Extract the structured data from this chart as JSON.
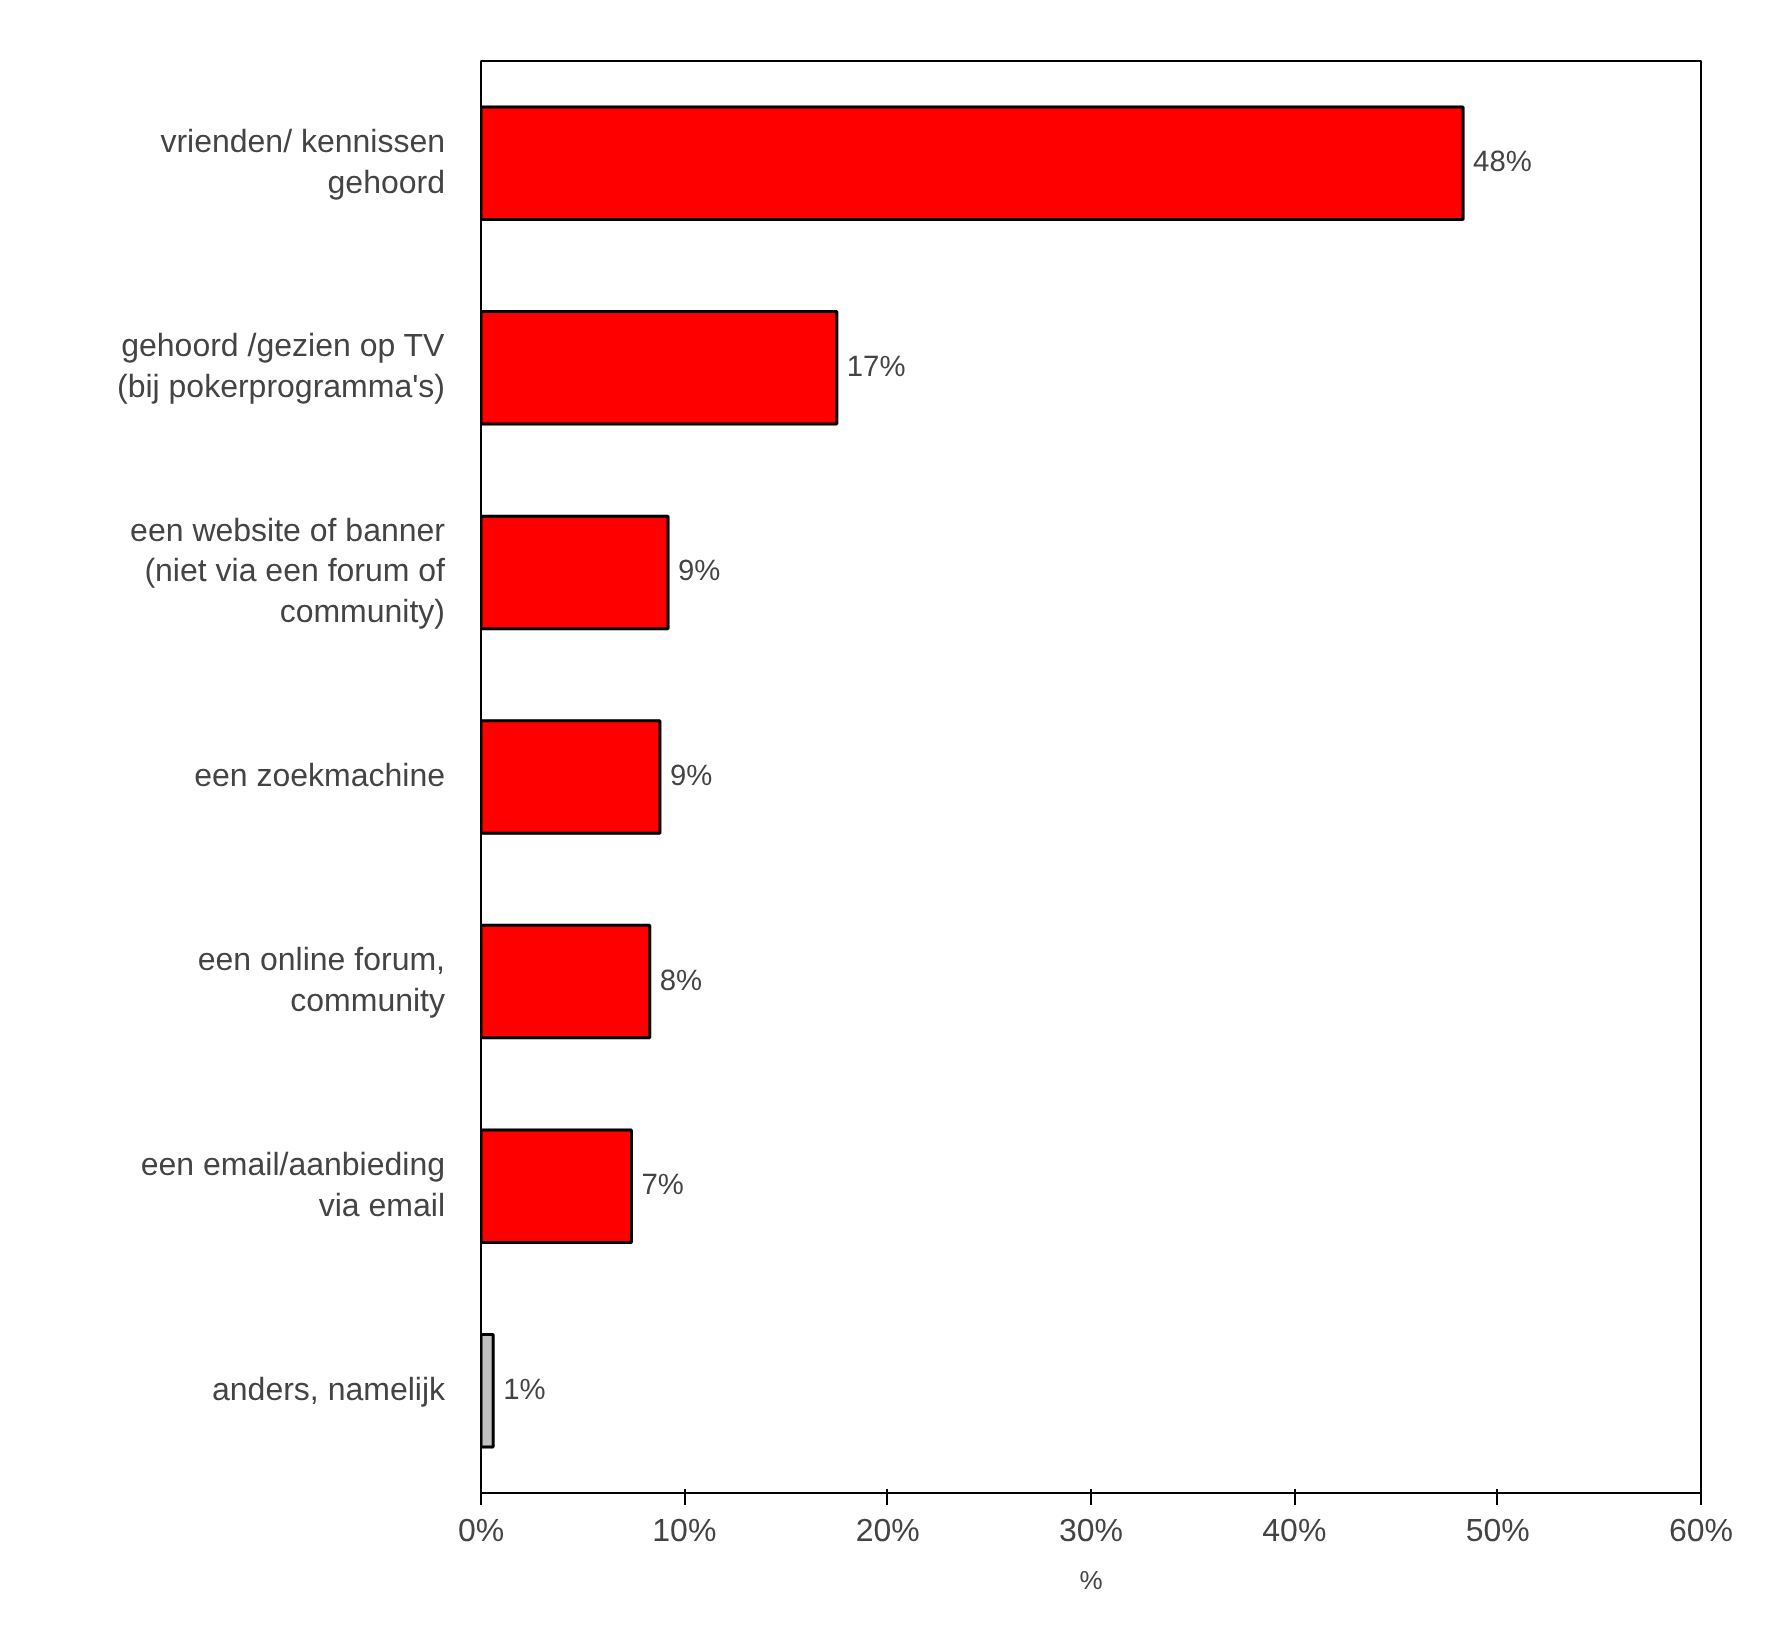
{
  "chart_data": {
    "type": "bar",
    "orientation": "horizontal",
    "xlabel": "%",
    "categories": [
      "vrienden/ kennissen gehoord",
      "gehoord /gezien op TV (bij pokerprogramma's)",
      "een website of banner (niet via een forum of community)",
      "een zoekmachine",
      "een online forum, community",
      "een email/aanbieding via email",
      "anders, namelijk"
    ],
    "values": [
      48.3,
      17.5,
      9.2,
      8.8,
      8.3,
      7.4,
      0.6
    ],
    "value_labels": [
      "48%",
      "17%",
      "9%",
      "9%",
      "8%",
      "7%",
      "1%"
    ],
    "colors": [
      "#ff0000",
      "#ff0000",
      "#ff0000",
      "#ff0000",
      "#ff0000",
      "#ff0000",
      "#c0c0c0"
    ],
    "xlim": [
      0,
      60
    ],
    "xticks": [
      {
        "value": 0,
        "label": "0%"
      },
      {
        "value": 10,
        "label": "10%"
      },
      {
        "value": 20,
        "label": "20%"
      },
      {
        "value": 30,
        "label": "30%"
      },
      {
        "value": 40,
        "label": "40%"
      },
      {
        "value": 50,
        "label": "50%"
      },
      {
        "value": 60,
        "label": "60%"
      }
    ],
    "grid": false
  }
}
